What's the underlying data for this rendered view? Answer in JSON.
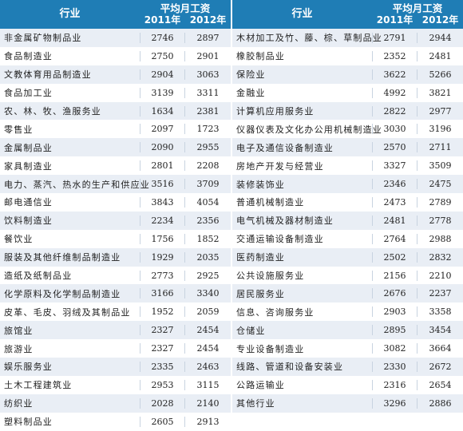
{
  "header": {
    "industry_label": "行业",
    "wage_label": "平均月工资",
    "year1": "2011年",
    "year2": "2012年"
  },
  "left_rows": [
    {
      "name": "非金属矿物制品业",
      "y2011": "2746",
      "y2012": "2897"
    },
    {
      "name": "食品制造业",
      "y2011": "2750",
      "y2012": "2901"
    },
    {
      "name": "文教体育用品制造业",
      "y2011": "2904",
      "y2012": "3063"
    },
    {
      "name": "食品加工业",
      "y2011": "3139",
      "y2012": "3311"
    },
    {
      "name": "农、林、牧、渔服务业",
      "y2011": "1634",
      "y2012": "2381"
    },
    {
      "name": "零售业",
      "y2011": "2097",
      "y2012": "1723"
    },
    {
      "name": "金属制品业",
      "y2011": "2090",
      "y2012": "2955"
    },
    {
      "name": "家具制造业",
      "y2011": "2801",
      "y2012": "2208"
    },
    {
      "name": "电力、蒸汽、热水的生产和供应业",
      "y2011": "3516",
      "y2012": "3709"
    },
    {
      "name": "邮电通信业",
      "y2011": "3843",
      "y2012": "4054"
    },
    {
      "name": "饮料制造业",
      "y2011": "2234",
      "y2012": "2356"
    },
    {
      "name": "餐饮业",
      "y2011": "1756",
      "y2012": "1852"
    },
    {
      "name": "服装及其他纤维制品制造业",
      "y2011": "1929",
      "y2012": "2035"
    },
    {
      "name": "造纸及纸制品业",
      "y2011": "2773",
      "y2012": "2925"
    },
    {
      "name": "化学原料及化学制品制造业",
      "y2011": "3166",
      "y2012": "3340"
    },
    {
      "name": "皮革、毛皮、羽绒及其制品业",
      "y2011": "1952",
      "y2012": "2059"
    },
    {
      "name": "旅馆业",
      "y2011": "2327",
      "y2012": "2454"
    },
    {
      "name": "旅游业",
      "y2011": "2327",
      "y2012": "2454"
    },
    {
      "name": "娱乐服务业",
      "y2011": "2335",
      "y2012": "2463"
    },
    {
      "name": "土木工程建筑业",
      "y2011": "2953",
      "y2012": "3115"
    },
    {
      "name": "纺织业",
      "y2011": "2028",
      "y2012": "2140"
    },
    {
      "name": "塑料制品业",
      "y2011": "2605",
      "y2012": "2913"
    }
  ],
  "right_rows": [
    {
      "name": "木材加工及竹、藤、棕、草制品业",
      "y2011": "2791",
      "y2012": "2944"
    },
    {
      "name": "橡胶制品业",
      "y2011": "2352",
      "y2012": "2481"
    },
    {
      "name": "保险业",
      "y2011": "3622",
      "y2012": "5266"
    },
    {
      "name": "金融业",
      "y2011": "4992",
      "y2012": "3821"
    },
    {
      "name": "计算机应用服务业",
      "y2011": "2822",
      "y2012": "2977"
    },
    {
      "name": "仪器仪表及文化办公用机械制造业",
      "y2011": "3030",
      "y2012": "3196"
    },
    {
      "name": "电子及通信设备制造业",
      "y2011": "2570",
      "y2012": "2711"
    },
    {
      "name": "房地产开发与经营业",
      "y2011": "3327",
      "y2012": "3509"
    },
    {
      "name": "装修装饰业",
      "y2011": "2346",
      "y2012": "2475"
    },
    {
      "name": "普通机械制造业",
      "y2011": "2473",
      "y2012": "2789"
    },
    {
      "name": "电气机械及器材制造业",
      "y2011": "2481",
      "y2012": "2778"
    },
    {
      "name": "交通运输设备制造业",
      "y2011": "2764",
      "y2012": "2988"
    },
    {
      "name": "医药制造业",
      "y2011": "2502",
      "y2012": "2832"
    },
    {
      "name": "公共设施服务业",
      "y2011": "2156",
      "y2012": "2210"
    },
    {
      "name": "居民服务业",
      "y2011": "2676",
      "y2012": "2237"
    },
    {
      "name": "信息、咨询服务业",
      "y2011": "2903",
      "y2012": "3358"
    },
    {
      "name": "仓储业",
      "y2011": "2895",
      "y2012": "3454"
    },
    {
      "name": "专业设备制造业",
      "y2011": "3082",
      "y2012": "3664"
    },
    {
      "name": "线路、管道和设备安装业",
      "y2011": "2330",
      "y2012": "2672"
    },
    {
      "name": "公路运输业",
      "y2011": "2316",
      "y2012": "2654"
    },
    {
      "name": "其他行业",
      "y2011": "3296",
      "y2012": "2886"
    }
  ]
}
